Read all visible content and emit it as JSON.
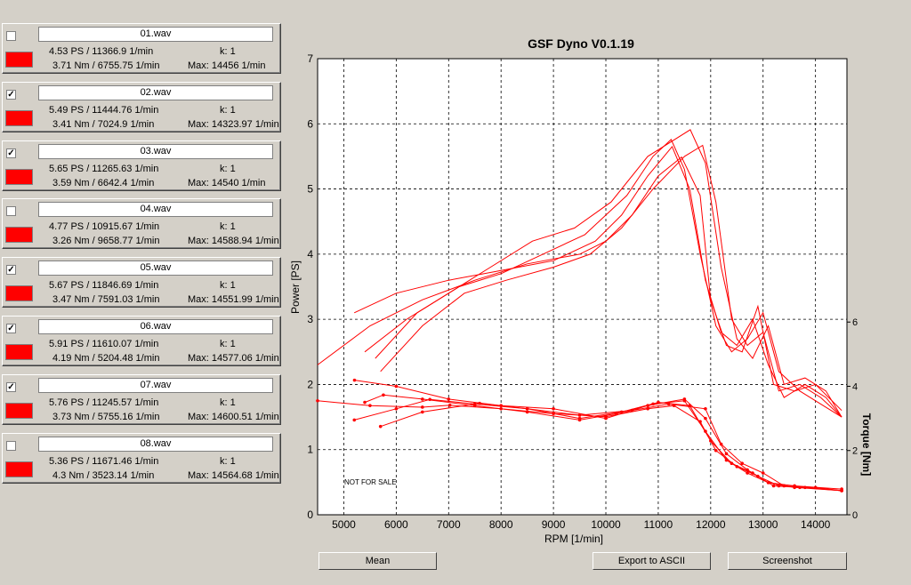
{
  "files": [
    {
      "name": "01.wav",
      "checked": false,
      "power": "4.53 PS / 11366.9 1/min",
      "k": "k: 1",
      "torque": "3.71 Nm / 6755.75 1/min",
      "max": "Max: 14456 1/min"
    },
    {
      "name": "02.wav",
      "checked": true,
      "power": "5.49 PS / 11444.76 1/min",
      "k": "k: 1",
      "torque": "3.41 Nm / 7024.9 1/min",
      "max": "Max: 14323.97 1/min"
    },
    {
      "name": "03.wav",
      "checked": true,
      "power": "5.65 PS / 11265.63 1/min",
      "k": "k: 1",
      "torque": "3.59 Nm / 6642.4 1/min",
      "max": "Max: 14540 1/min"
    },
    {
      "name": "04.wav",
      "checked": false,
      "power": "4.77 PS / 10915.67 1/min",
      "k": "k: 1",
      "torque": "3.26 Nm / 9658.77 1/min",
      "max": "Max: 14588.94 1/min"
    },
    {
      "name": "05.wav",
      "checked": true,
      "power": "5.67 PS / 11846.69 1/min",
      "k": "k: 1",
      "torque": "3.47 Nm / 7591.03 1/min",
      "max": "Max: 14551.99 1/min"
    },
    {
      "name": "06.wav",
      "checked": true,
      "power": "5.91 PS / 11610.07 1/min",
      "k": "k: 1",
      "torque": "4.19 Nm / 5204.48 1/min",
      "max": "Max: 14577.06 1/min"
    },
    {
      "name": "07.wav",
      "checked": true,
      "power": "5.76 PS / 11245.57 1/min",
      "k": "k: 1",
      "torque": "3.73 Nm / 5755.16 1/min",
      "max": "Max: 14600.51 1/min"
    },
    {
      "name": "08.wav",
      "checked": false,
      "power": "5.36 PS / 11671.46 1/min",
      "k": "k: 1",
      "torque": "4.3 Nm / 3523.14 1/min",
      "max": "Max: 14564.68 1/min"
    }
  ],
  "chart": {
    "title": "GSF Dyno V0.1.19",
    "xlabel": "RPM [1/min]",
    "ylabel_left": "Power [PS]",
    "ylabel_right": "Torque [Nm]",
    "watermark": "NOT FOR SALE",
    "x_ticks": [
      "5000",
      "6000",
      "7000",
      "8000",
      "9000",
      "10000",
      "11000",
      "12000",
      "13000",
      "14000"
    ],
    "y_ticks_left": [
      "0",
      "1",
      "2",
      "3",
      "4",
      "5",
      "6",
      "7"
    ],
    "y_ticks_right": [
      "0",
      "2",
      "4",
      "6"
    ]
  },
  "buttons": {
    "mean": "Mean",
    "export": "Export to ASCII",
    "screenshot": "Screenshot"
  },
  "swatch_color": "#ff0000",
  "chart_data": {
    "type": "line",
    "xlim": [
      4500,
      14600
    ],
    "ylim_left": [
      0,
      7
    ],
    "ylim_right": [
      0,
      14.2
    ],
    "grid": true,
    "series": [
      {
        "name": "02.wav",
        "axis": "power",
        "x": [
          4500,
          5500,
          6500,
          7500,
          8500,
          9500,
          10000,
          10500,
          11000,
          11444,
          11800,
          12000,
          12300,
          12600,
          12900,
          13200,
          13600,
          14000,
          14500
        ],
        "y": [
          2.3,
          2.9,
          3.3,
          3.6,
          3.85,
          4.0,
          4.2,
          4.6,
          5.2,
          5.49,
          4.9,
          3.3,
          2.6,
          2.5,
          3.2,
          2.0,
          1.9,
          2.0,
          1.6
        ]
      },
      {
        "name": "03.wav",
        "axis": "power",
        "x": [
          5200,
          6000,
          7000,
          8000,
          9000,
          9800,
          10300,
          10800,
          11265,
          11600,
          11900,
          12200,
          12500,
          12800,
          13100,
          13400,
          13800,
          14200,
          14500
        ],
        "y": [
          3.1,
          3.4,
          3.6,
          3.75,
          3.9,
          4.2,
          4.6,
          5.2,
          5.65,
          5.0,
          3.6,
          2.8,
          2.6,
          3.0,
          2.3,
          1.8,
          2.0,
          1.8,
          1.5
        ]
      },
      {
        "name": "05.wav",
        "axis": "power",
        "x": [
          5700,
          6500,
          7300,
          8100,
          9000,
          9700,
          10300,
          10900,
          11500,
          11846,
          12100,
          12400,
          12700,
          13000,
          13300,
          13700,
          14100,
          14500
        ],
        "y": [
          2.2,
          2.9,
          3.4,
          3.6,
          3.8,
          4.0,
          4.4,
          5.0,
          5.5,
          5.67,
          4.8,
          3.0,
          2.6,
          2.8,
          1.9,
          2.0,
          1.8,
          1.5
        ]
      },
      {
        "name": "06.wav",
        "axis": "power",
        "x": [
          5400,
          6200,
          7000,
          7800,
          8600,
          9400,
          10100,
          10800,
          11610,
          11900,
          12200,
          12500,
          12800,
          13100,
          13400,
          13800,
          14200,
          14500
        ],
        "y": [
          2.5,
          3.0,
          3.4,
          3.8,
          4.2,
          4.4,
          4.8,
          5.5,
          5.91,
          5.4,
          3.8,
          2.7,
          2.4,
          2.9,
          2.0,
          2.1,
          1.9,
          1.5
        ]
      },
      {
        "name": "07.wav",
        "axis": "power",
        "x": [
          5600,
          6400,
          7200,
          8000,
          8800,
          9600,
          10400,
          10900,
          11245,
          11500,
          11800,
          12100,
          12400,
          12700,
          13000,
          13300,
          13700,
          14100,
          14500
        ],
        "y": [
          2.4,
          3.1,
          3.5,
          3.7,
          4.0,
          4.3,
          4.9,
          5.5,
          5.76,
          5.3,
          4.0,
          2.9,
          2.5,
          2.7,
          3.1,
          2.2,
          1.9,
          1.7,
          1.5
        ]
      },
      {
        "name": "02.wav",
        "axis": "torque",
        "x": [
          4500,
          5500,
          6500,
          7024,
          8000,
          9000,
          10000,
          10800,
          11300,
          11800,
          12100,
          12500,
          12900,
          13300,
          13800,
          14500
        ],
        "y": [
          3.55,
          3.4,
          3.35,
          3.41,
          3.3,
          3.15,
          3.05,
          3.3,
          3.4,
          2.9,
          2.0,
          1.5,
          1.2,
          0.9,
          0.85,
          0.75
        ]
      },
      {
        "name": "03.wav",
        "axis": "torque",
        "x": [
          5200,
          6000,
          6642,
          7500,
          8500,
          9500,
          10300,
          11000,
          11600,
          12000,
          12400,
          12800,
          13200,
          13700,
          14500
        ],
        "y": [
          2.95,
          3.3,
          3.59,
          3.45,
          3.3,
          3.0,
          3.2,
          3.5,
          3.4,
          2.3,
          1.6,
          1.3,
          0.9,
          0.85,
          0.75
        ]
      },
      {
        "name": "05.wav",
        "axis": "torque",
        "x": [
          5700,
          6500,
          7591,
          8500,
          9500,
          10500,
          11200,
          11900,
          12200,
          12600,
          13000,
          13400,
          14000,
          14500
        ],
        "y": [
          2.75,
          3.2,
          3.47,
          3.3,
          3.1,
          3.25,
          3.45,
          3.3,
          2.2,
          1.6,
          1.3,
          0.9,
          0.85,
          0.75
        ]
      },
      {
        "name": "06.wav",
        "axis": "torque",
        "x": [
          5204,
          6000,
          7000,
          8000,
          9000,
          10000,
          10800,
          11500,
          11900,
          12300,
          12700,
          13100,
          13600,
          14500
        ],
        "y": [
          4.19,
          4.0,
          3.6,
          3.4,
          3.3,
          3.0,
          3.4,
          3.6,
          3.0,
          1.9,
          1.4,
          1.0,
          0.9,
          0.8
        ]
      },
      {
        "name": "07.wav",
        "axis": "torque",
        "x": [
          5400,
          5755,
          6500,
          7500,
          8500,
          9500,
          10200,
          10900,
          11500,
          11900,
          12300,
          12700,
          13100,
          13600,
          14500
        ],
        "y": [
          3.5,
          3.73,
          3.6,
          3.4,
          3.2,
          2.95,
          3.15,
          3.45,
          3.55,
          2.6,
          1.7,
          1.3,
          1.0,
          0.85,
          0.75
        ]
      }
    ]
  }
}
